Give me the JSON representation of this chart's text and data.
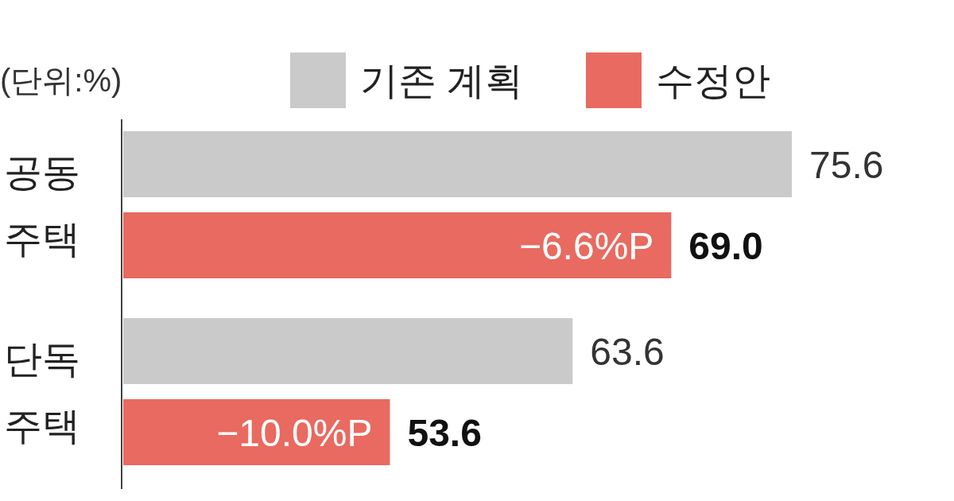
{
  "chart_data": {
    "type": "bar",
    "orientation": "horizontal",
    "categories": [
      "공동\n주택",
      "단독\n주택"
    ],
    "series": [
      {
        "name": "기존 계획",
        "color": "#cacaca",
        "values": [
          75.6,
          63.6
        ],
        "value_labels": [
          "75.6",
          "63.6"
        ]
      },
      {
        "name": "수정안",
        "color": "#e86a60",
        "values": [
          69.0,
          53.6
        ],
        "value_labels": [
          "69.0",
          "53.6"
        ]
      }
    ],
    "xlim": [
      39,
      75.6
    ],
    "legend": "top",
    "annotations": [
      "(단위:%)",
      "−6.6%P",
      "−10.0%P"
    ]
  }
}
